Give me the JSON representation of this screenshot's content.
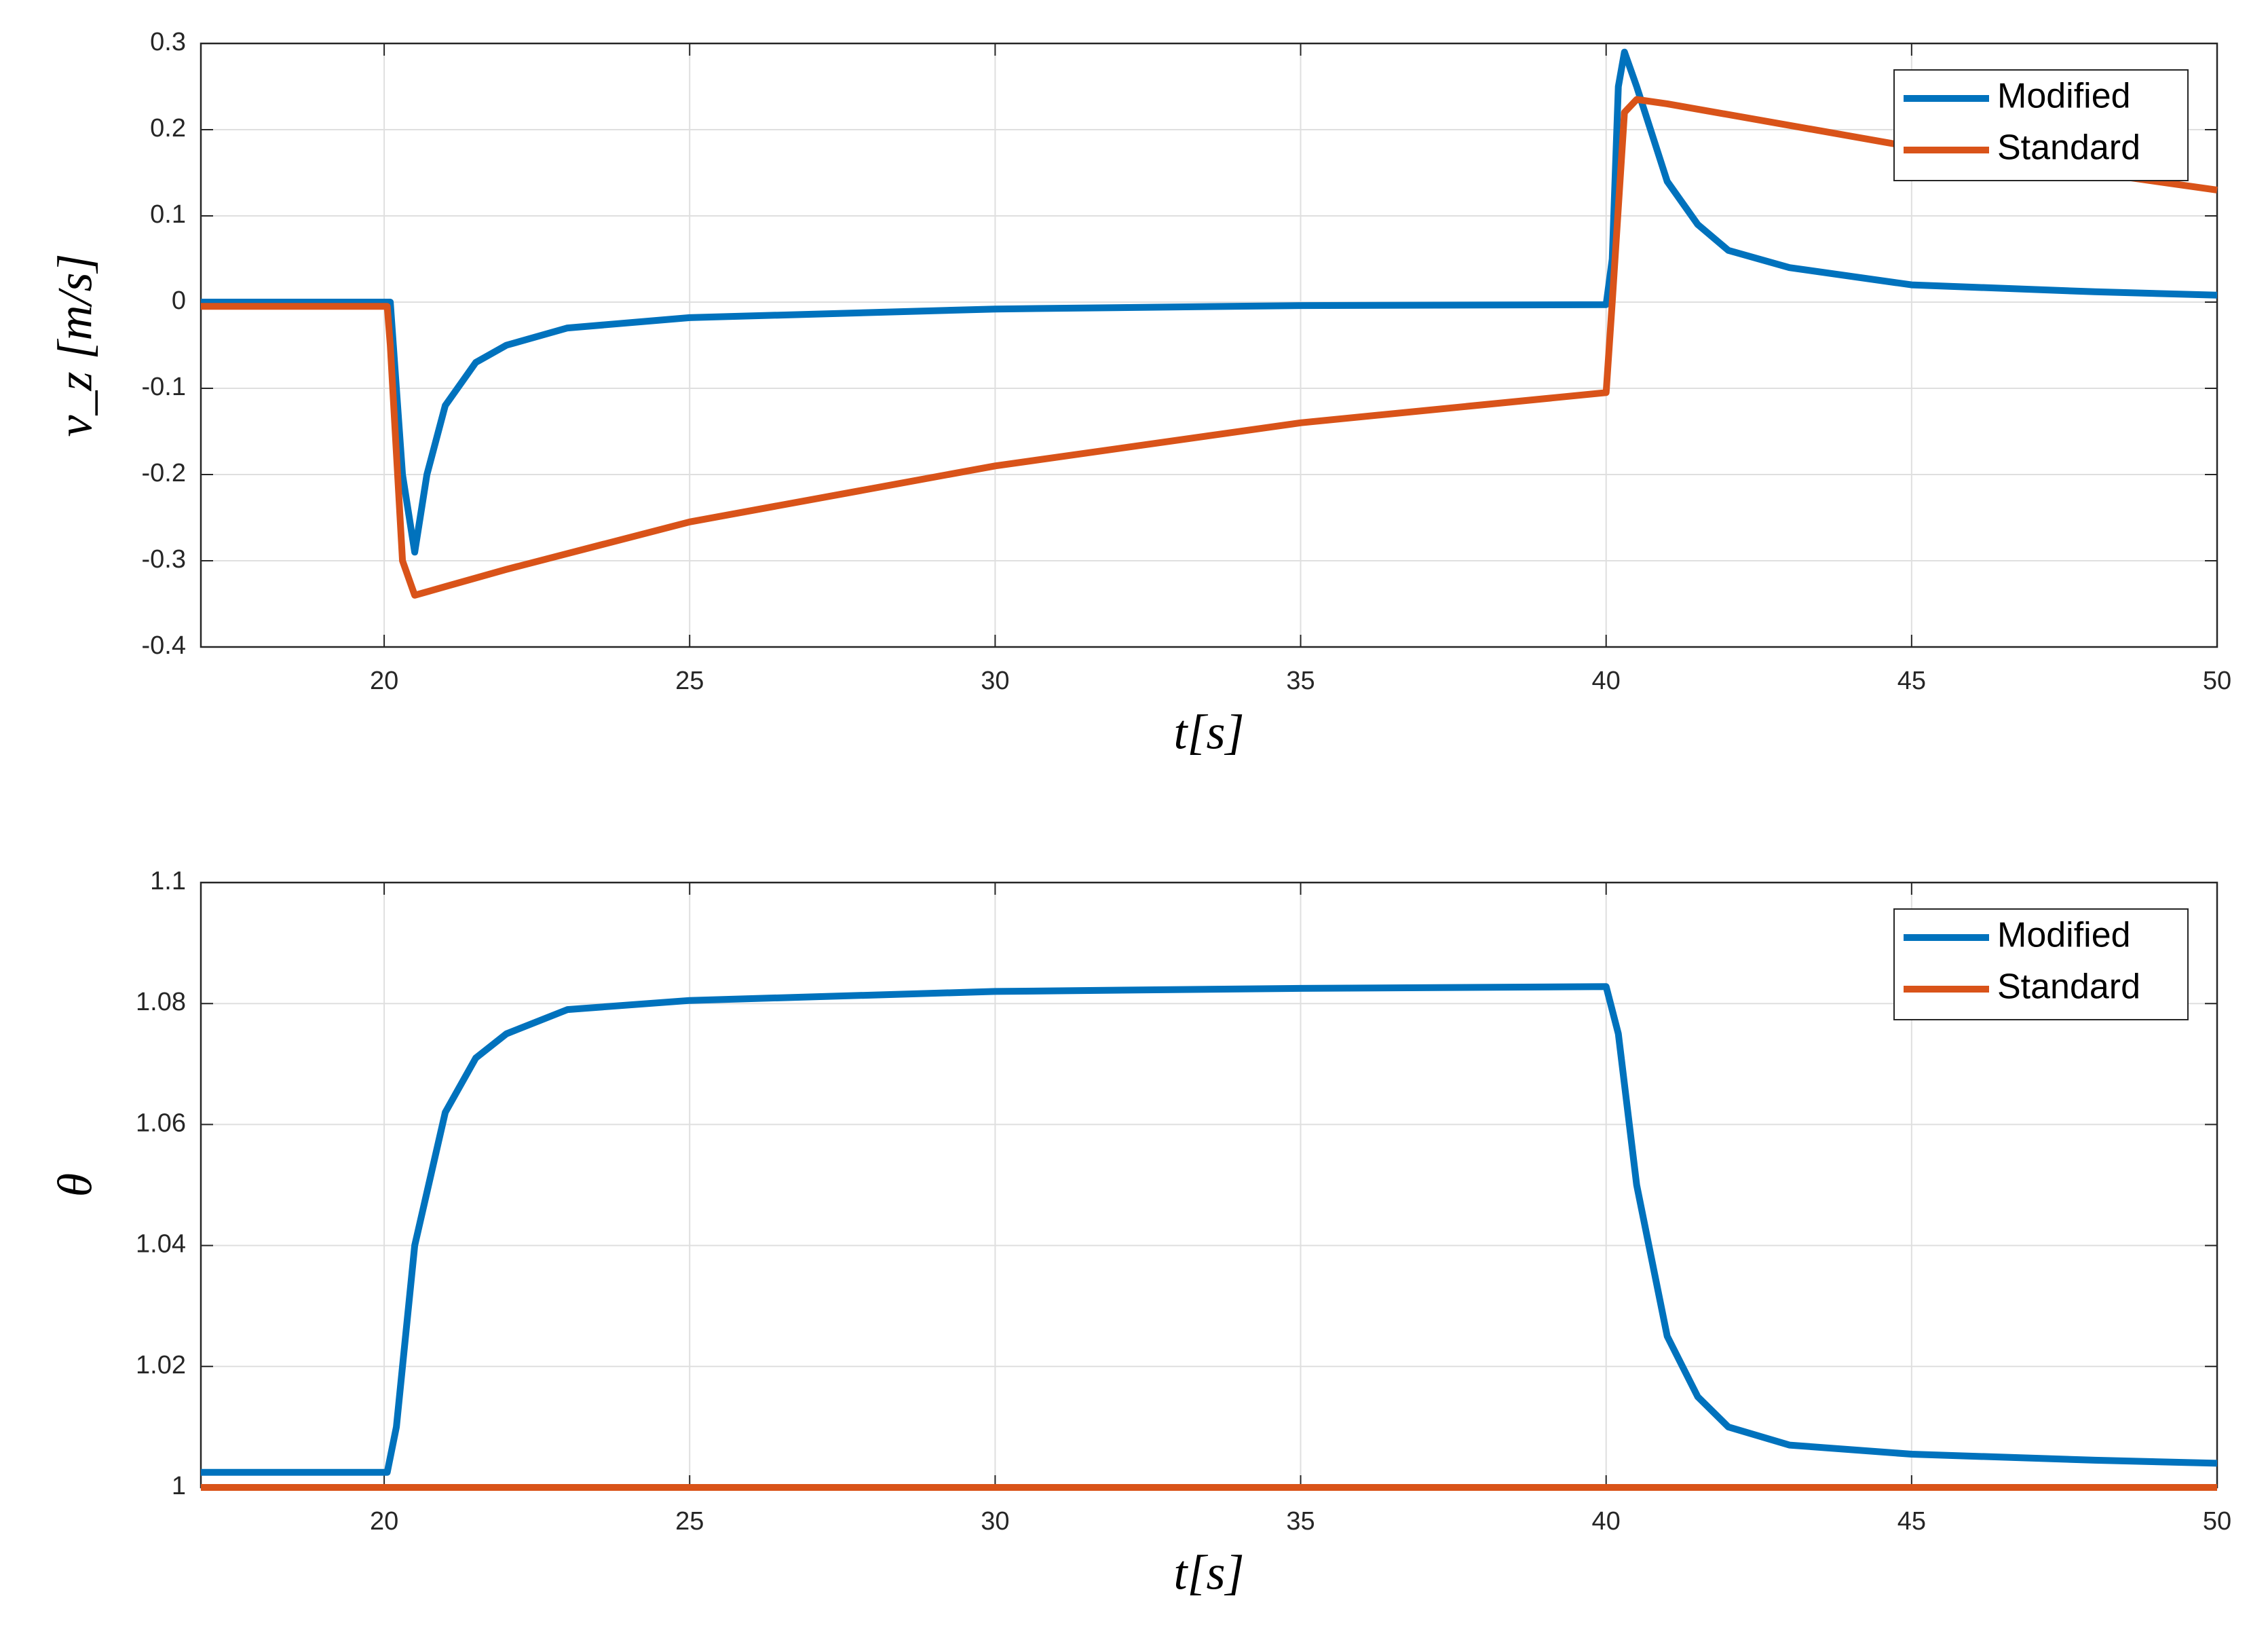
{
  "chart_data": [
    {
      "type": "line",
      "xlabel": "t[s]",
      "ylabel": "v_z [m/s]",
      "xlim": [
        17,
        50
      ],
      "ylim": [
        -0.4,
        0.3
      ],
      "xticks": [
        20,
        25,
        30,
        35,
        40,
        45,
        50
      ],
      "yticks": [
        -0.4,
        -0.3,
        -0.2,
        -0.1,
        0,
        0.1,
        0.2,
        0.3
      ],
      "grid": true,
      "legend": "upper right",
      "series": [
        {
          "name": "Modified",
          "color": "#0072bd",
          "x": [
            17,
            20,
            20.1,
            20.3,
            20.5,
            20.7,
            21,
            21.5,
            22,
            23,
            25,
            30,
            35,
            40,
            40.1,
            40.2,
            40.3,
            40.5,
            41,
            41.5,
            42,
            43,
            45,
            48,
            50
          ],
          "values": [
            0,
            0,
            0,
            -0.2,
            -0.29,
            -0.2,
            -0.12,
            -0.07,
            -0.05,
            -0.03,
            -0.018,
            -0.008,
            -0.004,
            -0.003,
            0.05,
            0.25,
            0.29,
            0.25,
            0.14,
            0.09,
            0.06,
            0.04,
            0.02,
            0.012,
            0.008
          ]
        },
        {
          "name": "Standard",
          "color": "#d95319",
          "x": [
            17,
            20.05,
            20.1,
            20.3,
            20.5,
            21,
            22,
            25,
            30,
            35,
            40,
            40.1,
            40.3,
            40.5,
            41,
            45,
            50
          ],
          "values": [
            -0.005,
            -0.005,
            -0.05,
            -0.3,
            -0.34,
            -0.33,
            -0.31,
            -0.255,
            -0.19,
            -0.14,
            -0.105,
            0,
            0.22,
            0.235,
            0.23,
            0.18,
            0.13
          ]
        }
      ]
    },
    {
      "type": "line",
      "xlabel": "t[s]",
      "ylabel": "θ",
      "xlim": [
        17,
        50
      ],
      "ylim": [
        1,
        1.1
      ],
      "xticks": [
        20,
        25,
        30,
        35,
        40,
        45,
        50
      ],
      "yticks": [
        1,
        1.02,
        1.04,
        1.06,
        1.08,
        1.1
      ],
      "grid": true,
      "legend": "upper right",
      "series": [
        {
          "name": "Modified",
          "color": "#0072bd",
          "x": [
            17,
            20.05,
            20.2,
            20.5,
            21,
            21.5,
            22,
            23,
            25,
            30,
            35,
            40,
            40.2,
            40.5,
            41,
            41.5,
            42,
            43,
            45,
            48,
            50
          ],
          "values": [
            1.0025,
            1.0025,
            1.01,
            1.04,
            1.062,
            1.071,
            1.075,
            1.079,
            1.0805,
            1.082,
            1.0825,
            1.0828,
            1.075,
            1.05,
            1.025,
            1.015,
            1.01,
            1.007,
            1.0055,
            1.0045,
            1.004
          ]
        },
        {
          "name": "Standard",
          "color": "#d95319",
          "x": [
            17,
            50
          ],
          "values": [
            1,
            1
          ]
        }
      ]
    }
  ]
}
